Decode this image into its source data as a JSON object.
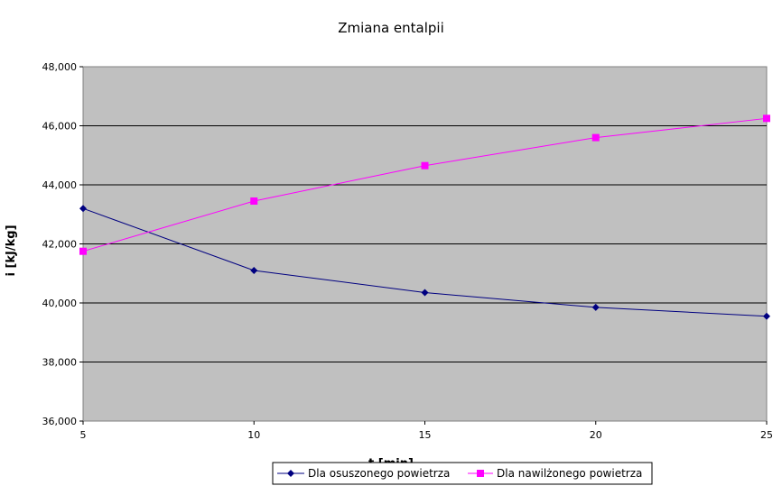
{
  "chart_data": {
    "type": "line",
    "title": "Zmiana entalpii",
    "xlabel": "t [min]",
    "ylabel": "i [kJ/kg]",
    "x": [
      5,
      10,
      15,
      20,
      25
    ],
    "x_tick_labels": [
      "5",
      "10",
      "15",
      "20",
      "25"
    ],
    "xlim": [
      5,
      25
    ],
    "ylim": [
      36000,
      48000
    ],
    "y_ticks": [
      36000,
      38000,
      40000,
      42000,
      44000,
      46000,
      48000
    ],
    "y_tick_labels": [
      "36,000",
      "38,000",
      "40,000",
      "42,000",
      "44,000",
      "46,000",
      "48,000"
    ],
    "grid": "horizontal",
    "legend_position": "bottom",
    "plot_background": "#c0c0c0",
    "series": [
      {
        "name": "Dla osuszonego powietrza",
        "values": [
          43200,
          41100,
          40350,
          39850,
          39550
        ],
        "color": "#000080",
        "marker": "diamond"
      },
      {
        "name": "Dla nawilżonego powietrza",
        "values": [
          41750,
          43450,
          44650,
          45600,
          46250
        ],
        "color": "#ff00ff",
        "marker": "square"
      }
    ]
  }
}
